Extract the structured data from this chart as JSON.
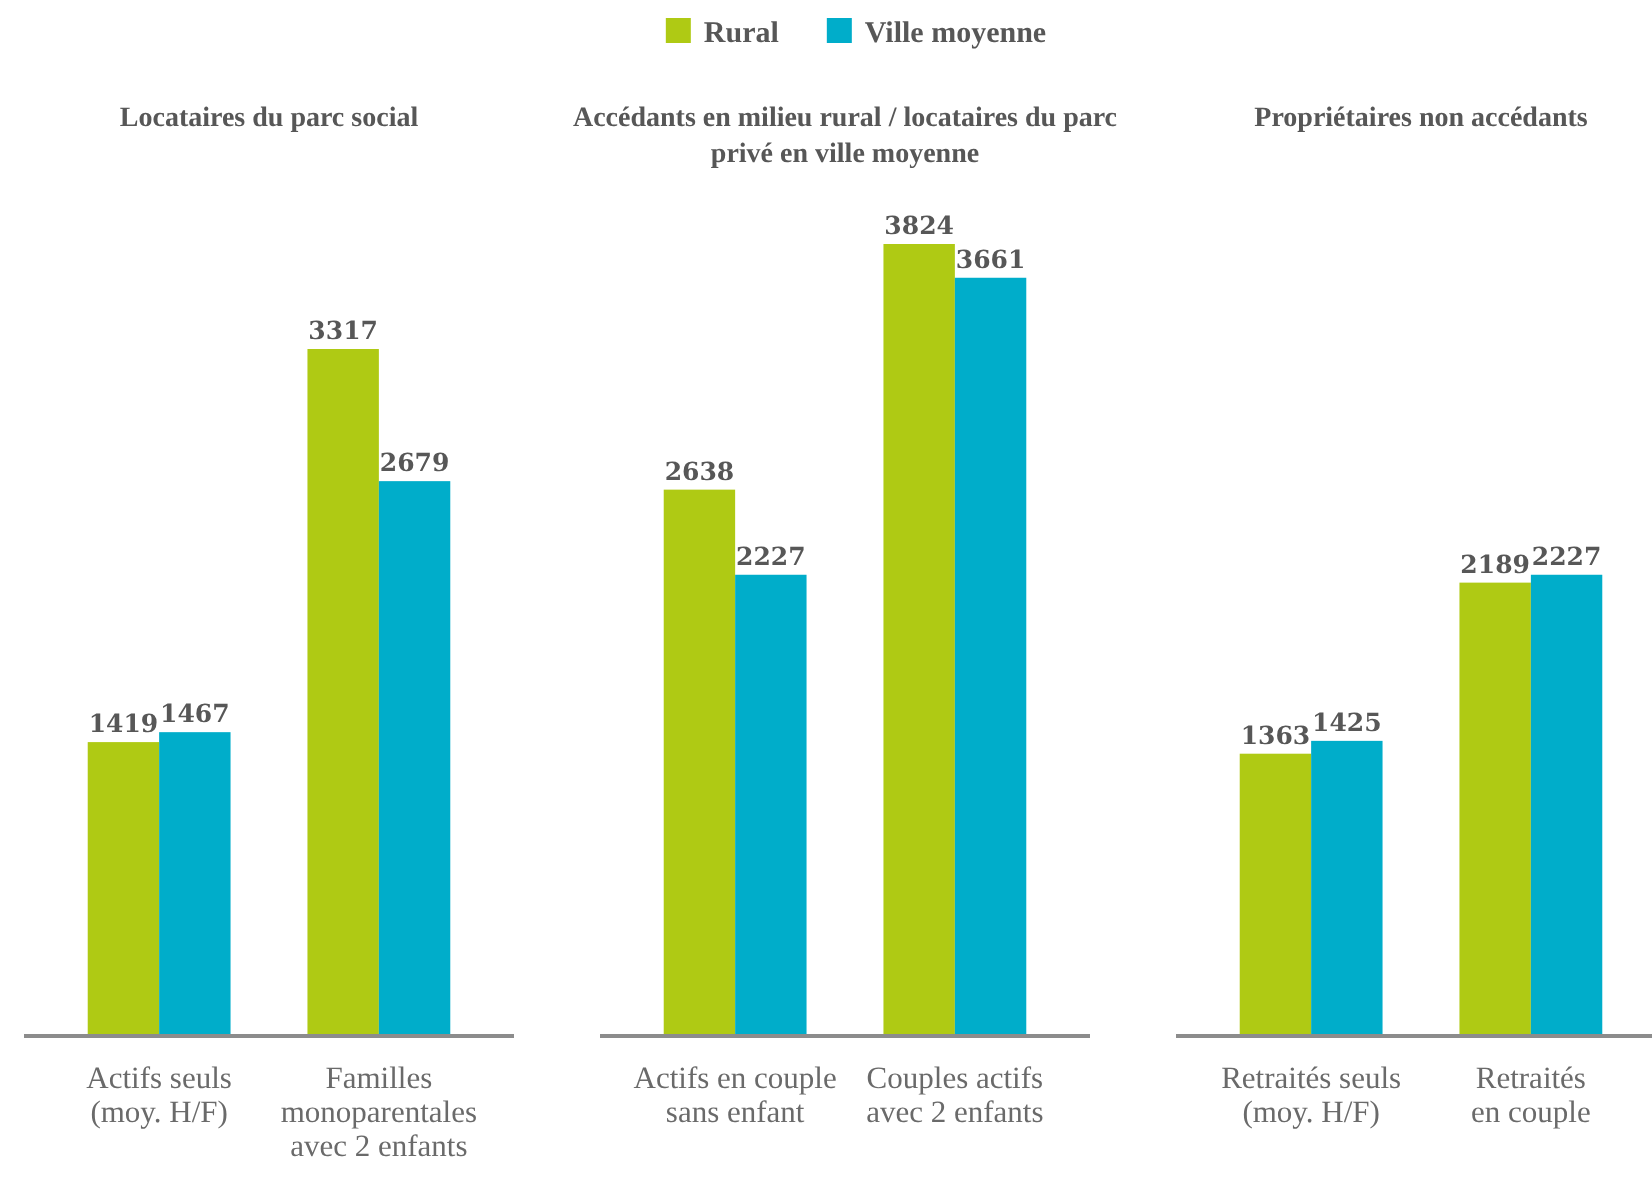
{
  "chart_data": [
    {
      "type": "bar",
      "title": "Locataires du parc social",
      "categories": [
        "Actifs seuls\n(moy. H/F)",
        "Familles\nmonoparentales\navec 2 enfants"
      ],
      "series": [
        {
          "name": "Rural",
          "color": "#afca14",
          "values": [
            1419,
            3317
          ]
        },
        {
          "name": "Ville moyenne",
          "color": "#00adca",
          "values": [
            1467,
            2679
          ]
        }
      ],
      "tick_labels": "x",
      "data_labels": true,
      "legend": "top"
    },
    {
      "type": "bar",
      "title": "Accédants en milieu rural / locataires du parc\nprivé en ville moyenne",
      "categories": [
        "Actifs en couple\nsans enfant",
        "Couples actifs\navec 2 enfants"
      ],
      "series": [
        {
          "color": "#afca14",
          "values": [
            2638,
            3824
          ]
        },
        {
          "color": "#00adca",
          "values": [
            2227,
            3661
          ]
        }
      ],
      "tick_labels": "x",
      "data_labels": true
    },
    {
      "type": "bar",
      "title": "Propriétaires non accédants",
      "categories": [
        "Retraités seuls\n(moy. H/F)",
        "Retraités\nen couple"
      ],
      "series": [
        {
          "color": "#afca14",
          "values": [
            1363,
            2189
          ]
        },
        {
          "color": "#00adca",
          "values": [
            1425,
            2227
          ]
        }
      ],
      "tick_labels": "x",
      "data_labels": true
    }
  ]
}
